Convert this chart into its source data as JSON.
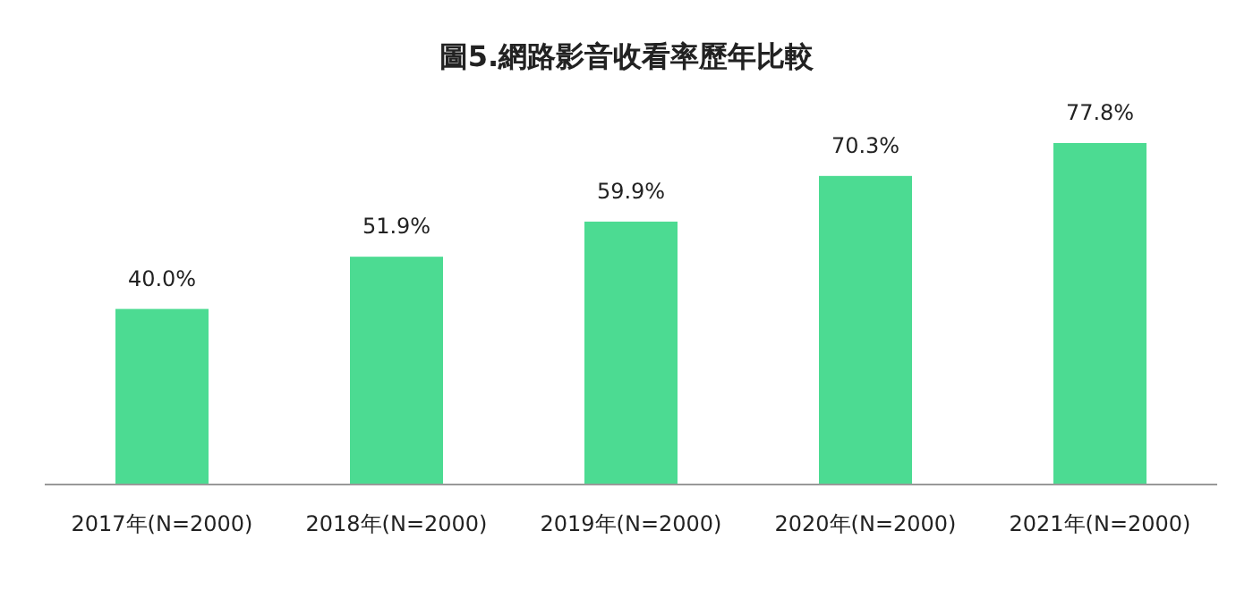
{
  "chart_data": {
    "type": "bar",
    "title": "圖5.網路影音收看率歷年比較",
    "categories": [
      "2017年(N=2000)",
      "2018年(N=2000)",
      "2019年(N=2000)",
      "2020年(N=2000)",
      "2021年(N=2000)"
    ],
    "values": [
      40.0,
      51.9,
      59.9,
      70.3,
      77.8
    ],
    "value_labels": [
      "40.0%",
      "51.9%",
      "59.9%",
      "70.3%",
      "77.8%"
    ],
    "color": "#4cdb92"
  }
}
